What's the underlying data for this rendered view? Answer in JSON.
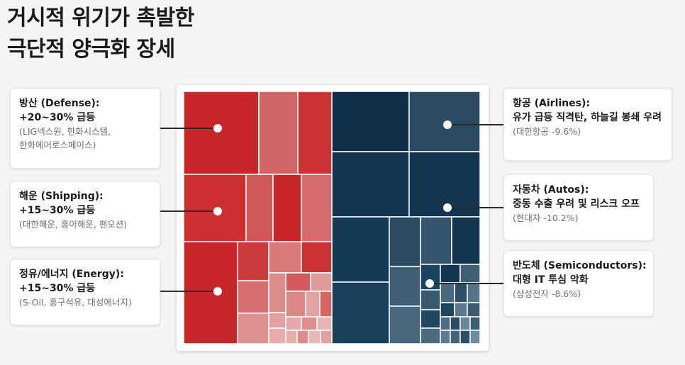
{
  "title": {
    "line1": "거시적 위기가 촉발한",
    "line2": "극단적 양극화 장세"
  },
  "colors": {
    "gain": "#c8272a",
    "loss": "#12364f"
  },
  "left_cards": [
    {
      "name": "defense",
      "heading": "방산 (Defense):",
      "change": "+20~30% 급등",
      "examples_line1": "(LIG넥스원, 한화시스템,",
      "examples_line2": "한화에어로스페이스)"
    },
    {
      "name": "shipping",
      "heading": "해운 (Shipping):",
      "change": "+15~30% 급등",
      "examples_line1": "(대한해운, 흥아해운, 팬오션)",
      "examples_line2": ""
    },
    {
      "name": "energy",
      "heading": "정유/에너지 (Energy):",
      "change": "+15~30% 급등",
      "examples_line1": "(S-Oil, 흥구석유, 대성에너지)",
      "examples_line2": ""
    }
  ],
  "right_cards": [
    {
      "name": "airlines",
      "heading": "항공 (Airlines):",
      "change": "유가 급등 직격탄, 하늘길 봉쇄 우려",
      "examples": "(대한항공 -9.6%)"
    },
    {
      "name": "autos",
      "heading": "자동차 (Autos):",
      "change": "중동 수출 우려 및 리스크 오프",
      "examples": "(현대차 -10.2%)"
    },
    {
      "name": "semiconductors",
      "heading": "반도체 (Semiconductors):",
      "change": "대형 IT 투심 악화",
      "examples": "(삼성전자 -8.6%)"
    }
  ]
}
